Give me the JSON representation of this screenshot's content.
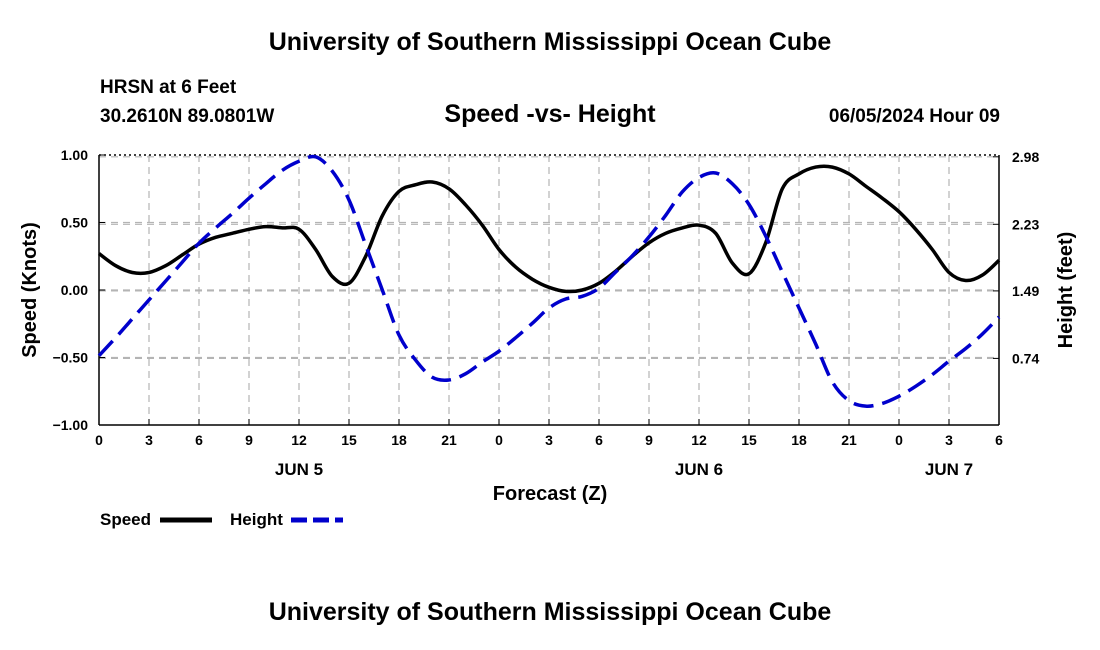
{
  "header": {
    "title": "University of Southern Mississippi Ocean Cube",
    "station": "HRSN at 6 Feet",
    "coords": "30.2610N  89.0801W",
    "datetime": "06/05/2024 Hour 09",
    "footer_title": "University of Southern Mississippi Ocean Cube"
  },
  "colors": {
    "speed": "#000000",
    "height": "#0000cc",
    "grid": "#b4b4b4"
  },
  "chart_data": {
    "type": "line",
    "title": "Speed -vs- Height",
    "xlabel": "Forecast (Z)",
    "ylabel": "Speed (Knots)",
    "ylabel_right": "Height (feet)",
    "x_range": [
      0,
      54
    ],
    "ylim": [
      -1.0,
      1.0
    ],
    "ylim_right": [
      0.0,
      3.0
    ],
    "x_tick_values": [
      0,
      3,
      6,
      9,
      12,
      15,
      18,
      21,
      24,
      27,
      30,
      33,
      36,
      39,
      42,
      45,
      48,
      51,
      54
    ],
    "x_tick_labels": [
      "0",
      "3",
      "6",
      "9",
      "12",
      "15",
      "18",
      "21",
      "0",
      "3",
      "6",
      "9",
      "12",
      "15",
      "18",
      "21",
      "0",
      "3",
      "6"
    ],
    "y_ticks": [
      1.0,
      0.5,
      0.0,
      -0.5,
      -1.0
    ],
    "y_tick_labels": [
      "1.00",
      "0.50",
      "0.00",
      "−0.50",
      "−1.00"
    ],
    "y_ticks_right": [
      2.98,
      2.23,
      1.49,
      0.74
    ],
    "y_tick_labels_right": [
      "2.98",
      "2.23",
      "1.49",
      "0.74"
    ],
    "date_labels": [
      {
        "x": 12,
        "label": "JUN 5"
      },
      {
        "x": 36,
        "label": "JUN 6"
      },
      {
        "x": 51,
        "label": "JUN 7"
      }
    ],
    "series": [
      {
        "name": "Speed",
        "axis": "left",
        "style": "solid",
        "x": [
          0,
          1,
          2,
          3,
          4,
          5,
          6,
          7,
          8,
          9,
          10,
          11,
          12,
          13,
          14,
          15,
          16,
          17,
          18,
          19,
          20,
          21,
          22,
          23,
          24,
          25,
          26,
          27,
          28,
          29,
          30,
          31,
          32,
          33,
          34,
          35,
          36,
          37,
          38,
          39,
          40,
          41,
          42,
          43,
          44,
          45,
          46,
          47,
          48,
          49,
          50,
          51,
          52,
          53,
          54
        ],
        "values": [
          0.27,
          0.18,
          0.13,
          0.13,
          0.18,
          0.26,
          0.34,
          0.39,
          0.42,
          0.45,
          0.47,
          0.46,
          0.45,
          0.3,
          0.1,
          0.05,
          0.25,
          0.55,
          0.73,
          0.78,
          0.8,
          0.75,
          0.63,
          0.48,
          0.3,
          0.17,
          0.08,
          0.02,
          -0.01,
          0.0,
          0.05,
          0.14,
          0.25,
          0.35,
          0.42,
          0.46,
          0.48,
          0.42,
          0.2,
          0.12,
          0.35,
          0.75,
          0.86,
          0.91,
          0.91,
          0.86,
          0.77,
          0.68,
          0.58,
          0.45,
          0.3,
          0.13,
          0.07,
          0.11,
          0.22
        ]
      },
      {
        "name": "Height",
        "axis": "right",
        "style": "dashed",
        "x": [
          0,
          1,
          2,
          3,
          4,
          5,
          6,
          7,
          8,
          9,
          10,
          11,
          12,
          13,
          14,
          15,
          16,
          17,
          18,
          19,
          20,
          21,
          22,
          23,
          24,
          25,
          26,
          27,
          28,
          29,
          30,
          31,
          32,
          33,
          34,
          35,
          36,
          37,
          38,
          39,
          40,
          41,
          42,
          43,
          44,
          45,
          46,
          47,
          48,
          49,
          50,
          51,
          52,
          53,
          54
        ],
        "values": [
          0.77,
          0.97,
          1.18,
          1.39,
          1.6,
          1.81,
          2.02,
          2.19,
          2.35,
          2.52,
          2.68,
          2.83,
          2.93,
          2.98,
          2.82,
          2.5,
          2.0,
          1.5,
          1.0,
          0.72,
          0.53,
          0.5,
          0.57,
          0.7,
          0.82,
          0.97,
          1.13,
          1.3,
          1.4,
          1.43,
          1.52,
          1.7,
          1.88,
          2.09,
          2.33,
          2.59,
          2.75,
          2.8,
          2.68,
          2.45,
          2.1,
          1.7,
          1.3,
          0.9,
          0.48,
          0.27,
          0.21,
          0.24,
          0.32,
          0.43,
          0.56,
          0.71,
          0.85,
          1.01,
          1.2
        ]
      }
    ],
    "legend": [
      {
        "name": "Speed",
        "style": "solid"
      },
      {
        "name": "Height",
        "style": "dashed"
      }
    ]
  }
}
